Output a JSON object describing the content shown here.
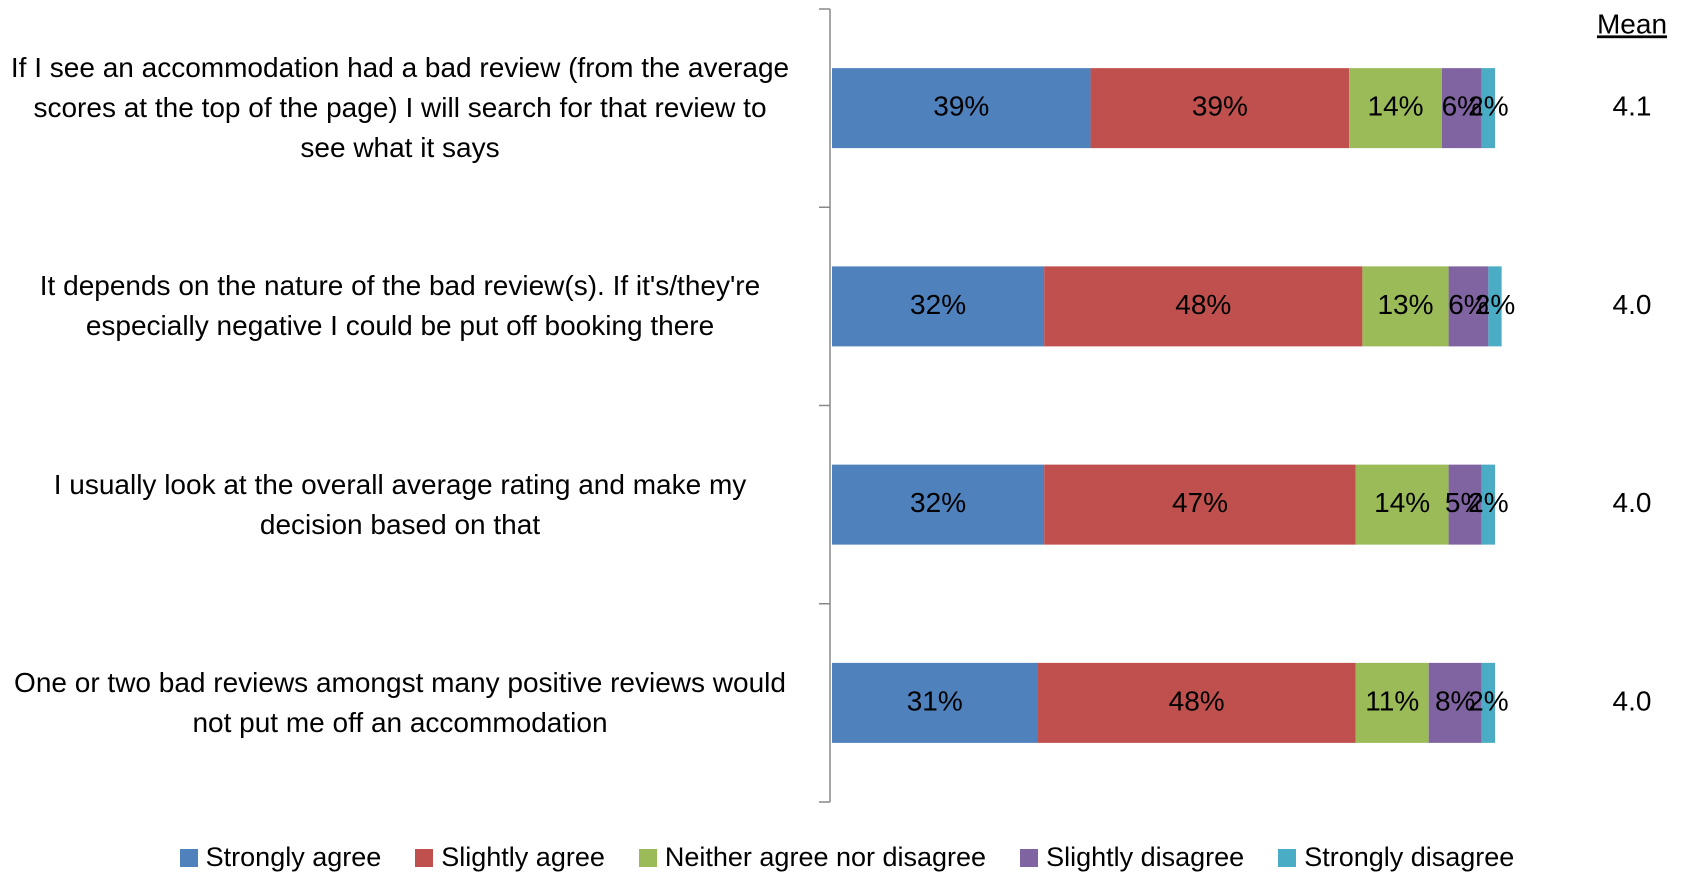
{
  "chart_data": {
    "type": "stacked_bar_horizontal",
    "categories": [
      "If I see an accommodation had a bad review (from the average scores at the top of the page) I will search for that review to see what it says",
      "It depends on the nature of the bad review(s).  If it's/they're especially  negative I could be put off booking there",
      "I usually look at the overall average rating and make my decision based on that",
      "One or two bad reviews amongst many positive reviews would not put me off an accommodation"
    ],
    "series": [
      {
        "name": "Strongly agree",
        "color": "#4F81BD",
        "values": [
          39,
          32,
          32,
          31
        ],
        "value_labels": [
          "39%",
          "32%",
          "32%",
          "31%"
        ]
      },
      {
        "name": "Slightly agree",
        "color": "#C0504D",
        "values": [
          39,
          48,
          47,
          48
        ],
        "value_labels": [
          "39%",
          "48%",
          "47%",
          "48%"
        ]
      },
      {
        "name": "Neither agree nor disagree",
        "color": "#9BBB59",
        "values": [
          14,
          13,
          14,
          11
        ],
        "value_labels": [
          "14%",
          "13%",
          "14%",
          "11%"
        ]
      },
      {
        "name": "Slightly disagree",
        "color": "#8064A2",
        "values": [
          6,
          6,
          5,
          8
        ],
        "value_labels": [
          "6%",
          "6%",
          "5%",
          "8%"
        ]
      },
      {
        "name": "Strongly disagree",
        "color": "#4BACC6",
        "values": [
          2,
          2,
          2,
          2
        ],
        "value_labels": [
          "2%",
          "2%",
          "2%",
          "2%"
        ]
      }
    ],
    "xlim": [
      0,
      100
    ],
    "mean_title": "Mean",
    "means": [
      "4.1",
      "4.0",
      "4.0",
      "4.0"
    ]
  }
}
